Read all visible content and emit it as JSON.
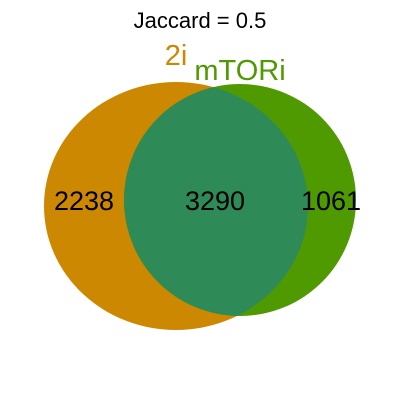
{
  "title": "Jaccard = 0.5",
  "sets": [
    {
      "name": "2i",
      "color": "#CC8800"
    },
    {
      "name": "mTORi",
      "color": "#4E9A00"
    }
  ],
  "overlap_color": "#2E8B57",
  "counts": {
    "only_a": "2238",
    "both": "3290",
    "only_b": "1061"
  }
}
